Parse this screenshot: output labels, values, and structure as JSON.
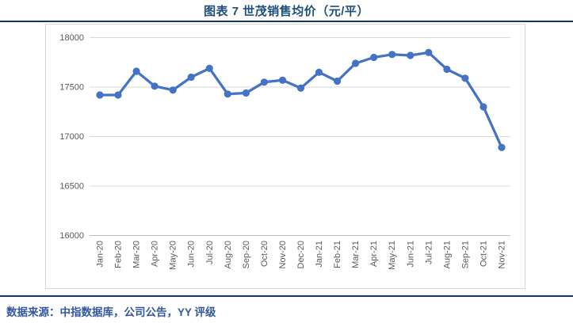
{
  "header": {
    "title": "图表 7  世茂销售均价（元/平）"
  },
  "footer": {
    "source": "数据来源：中指数据库，公司公告，YY 评级"
  },
  "colors": {
    "title_text": "#1F4E79",
    "rule": "#17365D",
    "source_text": "#3457A0",
    "line": "#4472C4",
    "marker": "#4472C4",
    "gridline": "#D9D9D9",
    "axis_line": "#BFBFBF",
    "tick_text": "#595959",
    "chart_border": "#D9D9D9",
    "background": "#FFFFFF"
  },
  "chart_data": {
    "type": "line",
    "title": "图表 7  世茂销售均价（元/平）",
    "xlabel": "",
    "ylabel": "",
    "categories": [
      "Jan-20",
      "Feb-20",
      "Mar-20",
      "Apr-20",
      "May-20",
      "Jun-20",
      "Jul-20",
      "Aug-20",
      "Sep-20",
      "Oct-20",
      "Nov-20",
      "Dec-20",
      "Jan-21",
      "Feb-21",
      "Mar-21",
      "Apr-21",
      "May-21",
      "Jun-21",
      "Jul-21",
      "Aug-21",
      "Sep-21",
      "Oct-21",
      "Nov-21"
    ],
    "series": [
      {
        "name": "世茂销售均价",
        "values": [
          17420,
          17420,
          17660,
          17510,
          17470,
          17600,
          17690,
          17430,
          17440,
          17550,
          17570,
          17490,
          17650,
          17560,
          17740,
          17800,
          17830,
          17820,
          17850,
          17680,
          17590,
          17300,
          16890
        ]
      }
    ],
    "ylim": [
      16000,
      18000
    ],
    "yticks": [
      16000,
      16500,
      17000,
      17500,
      18000
    ],
    "grid": true,
    "legend_position": "none",
    "marker_style": "circle",
    "x_tick_rotation_deg": -90
  }
}
